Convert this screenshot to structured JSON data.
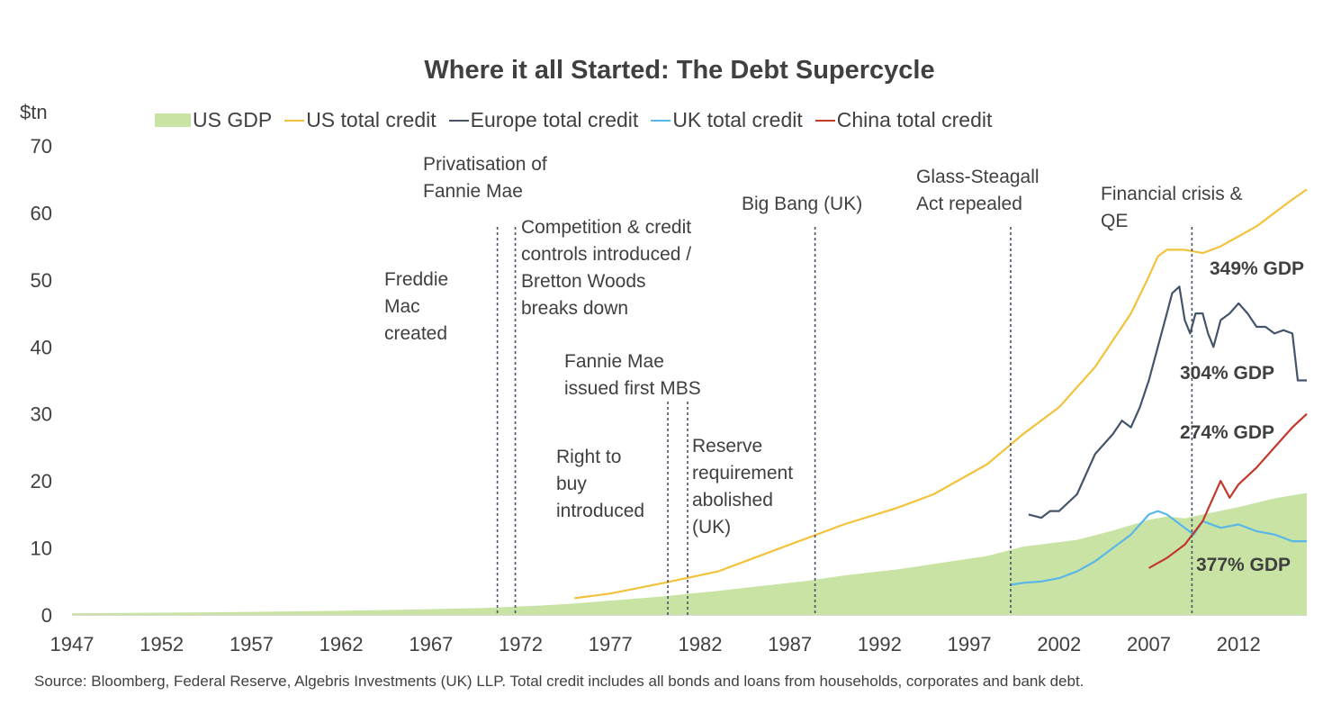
{
  "chart_data": {
    "type": "line",
    "title": "Where it all Started: The Debt Supercycle",
    "ylabel": "$tn",
    "xlabel": "",
    "xlim": [
      1947,
      2015.8
    ],
    "ylim": [
      0,
      70
    ],
    "x_ticks": [
      "1947",
      "1952",
      "1957",
      "1962",
      "1967",
      "1972",
      "1977",
      "1982",
      "1987",
      "1992",
      "1997",
      "2002",
      "2007",
      "2012"
    ],
    "y_ticks": [
      "0",
      "10",
      "20",
      "30",
      "40",
      "50",
      "60",
      "70"
    ],
    "grid": false,
    "legend": "top",
    "series": [
      {
        "name": "US GDP",
        "type": "area",
        "color": "#c9e3a4",
        "x": [
          1947,
          1950,
          1955,
          1960,
          1965,
          1970,
          1973,
          1975,
          1978,
          1980,
          1983,
          1985,
          1988,
          1990,
          1993,
          1995,
          1998,
          2000,
          2003,
          2005,
          2007,
          2008,
          2009,
          2010,
          2012,
          2014,
          2015.8
        ],
        "y": [
          0.25,
          0.3,
          0.4,
          0.55,
          0.75,
          1.05,
          1.4,
          1.7,
          2.35,
          2.8,
          3.6,
          4.2,
          5.1,
          5.9,
          6.8,
          7.6,
          8.8,
          10.2,
          11.2,
          12.6,
          14.2,
          14.7,
          14.4,
          15.0,
          16.1,
          17.4,
          18.2
        ]
      },
      {
        "name": "US total credit",
        "type": "line",
        "color": "#f2c23a",
        "x": [
          1975,
          1977,
          1980,
          1983,
          1985,
          1988,
          1990,
          1993,
          1995,
          1998,
          2000,
          2002,
          2004,
          2006,
          2007,
          2007.5,
          2008,
          2009,
          2010,
          2011,
          2012,
          2013,
          2014,
          2015,
          2015.8
        ],
        "y": [
          2.5,
          3.2,
          4.8,
          6.5,
          8.5,
          11.5,
          13.5,
          16,
          18,
          22.5,
          27,
          31,
          37,
          45,
          50.5,
          53.5,
          54.5,
          54.5,
          54,
          55,
          56.5,
          58,
          60,
          62,
          63.5
        ]
      },
      {
        "name": "Europe total credit",
        "type": "line",
        "color": "#44546a",
        "x": [
          2000.3,
          2001,
          2001.5,
          2002,
          2003,
          2004,
          2005,
          2005.5,
          2006,
          2006.5,
          2007,
          2007.5,
          2008,
          2008.3,
          2008.7,
          2009,
          2009.3,
          2009.6,
          2010,
          2010.3,
          2010.6,
          2011,
          2011.5,
          2012,
          2012.5,
          2013,
          2013.5,
          2014,
          2014.5,
          2015,
          2015.3,
          2015.8
        ],
        "y": [
          15,
          14.5,
          15.5,
          15.5,
          18,
          24,
          27,
          29,
          28,
          31,
          35,
          40,
          45,
          48,
          49,
          44,
          42,
          45,
          45,
          42,
          40,
          44,
          45,
          46.5,
          45,
          43,
          43,
          42,
          42.5,
          42,
          35,
          35
        ]
      },
      {
        "name": "UK total credit",
        "type": "line",
        "color": "#58b7e8",
        "x": [
          1999.3,
          2000,
          2001,
          2002,
          2003,
          2004,
          2005,
          2006,
          2007,
          2007.5,
          2008,
          2008.5,
          2009,
          2009.5,
          2010,
          2011,
          2012,
          2013,
          2014,
          2015,
          2015.8
        ],
        "y": [
          4.5,
          4.8,
          5,
          5.5,
          6.5,
          8,
          10,
          12,
          15,
          15.5,
          15,
          14,
          13,
          12,
          14,
          13,
          13.5,
          12.5,
          12,
          11,
          11
        ]
      },
      {
        "name": "China total credit",
        "type": "line",
        "color": "#c0392b",
        "x": [
          2007,
          2008,
          2009,
          2010,
          2011,
          2011.5,
          2012,
          2013,
          2014,
          2015,
          2015.8
        ],
        "y": [
          7,
          8.5,
          10.5,
          14,
          20,
          17.5,
          19.5,
          22,
          25,
          28,
          30
        ]
      }
    ],
    "vlines": [
      1970.7,
      1971.7,
      1980.2,
      1981.3,
      1988.4,
      1999.3,
      2009.4
    ],
    "annotations": [
      {
        "lines": [
          "Freddie",
          "Mac",
          "created"
        ]
      },
      {
        "lines": [
          "Privatisation of",
          "Fannie Mae"
        ]
      },
      {
        "lines": [
          "Competition & credit",
          "controls introduced /",
          "Bretton Woods",
          "breaks down"
        ]
      },
      {
        "lines": [
          "Fannie Mae",
          "issued first MBS"
        ]
      },
      {
        "lines": [
          "Right to",
          "buy",
          "introduced"
        ]
      },
      {
        "lines": [
          "Reserve",
          "requirement",
          "abolished",
          "(UK)"
        ]
      },
      {
        "lines": [
          "Big Bang (UK)"
        ]
      },
      {
        "lines": [
          "Glass-Steagall",
          "Act repealed"
        ]
      },
      {
        "lines": [
          "Financial crisis &",
          "QE"
        ]
      }
    ],
    "series_labels": [
      "349% GDP",
      "304% GDP",
      "274% GDP",
      "377% GDP"
    ],
    "source": "Source: Bloomberg, Federal Reserve, Algebris Investments (UK) LLP. Total credit includes all bonds and loans from households, corporates and bank debt."
  }
}
